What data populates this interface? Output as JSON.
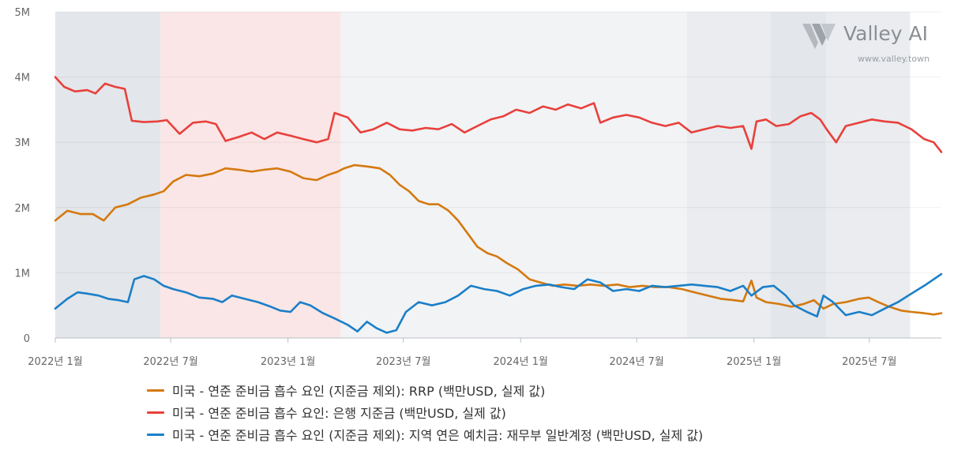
{
  "chart_data": {
    "type": "line",
    "title": "",
    "xlabel": "",
    "ylabel": "",
    "ylim": [
      0,
      5000000
    ],
    "xlim": [
      "2022-01-01",
      "2025-10-22"
    ],
    "y_ticks": [
      {
        "value": 0,
        "label": "0"
      },
      {
        "value": 1000000,
        "label": "1M"
      },
      {
        "value": 2000000,
        "label": "2M"
      },
      {
        "value": 3000000,
        "label": "3M"
      },
      {
        "value": 4000000,
        "label": "4M"
      },
      {
        "value": 5000000,
        "label": "5M"
      }
    ],
    "x_ticks": [
      {
        "date": "2022-01-01",
        "label": "2022년 1월"
      },
      {
        "date": "2022-07-01",
        "label": "2022년 7월"
      },
      {
        "date": "2023-01-01",
        "label": "2023년 1월"
      },
      {
        "date": "2023-07-01",
        "label": "2023년 7월"
      },
      {
        "date": "2024-01-01",
        "label": "2024년 1월"
      },
      {
        "date": "2024-07-01",
        "label": "2024년 7월"
      },
      {
        "date": "2025-01-01",
        "label": "2025년 1월"
      },
      {
        "date": "2025-07-01",
        "label": "2025년 7월"
      }
    ],
    "shaded_periods": [
      {
        "start": "2022-01-01",
        "end": "2022-06-15",
        "color": "#e3e6ea"
      },
      {
        "start": "2022-06-15",
        "end": "2023-03-25",
        "color": "#fae6e6"
      },
      {
        "start": "2023-03-25",
        "end": "2024-09-18",
        "color": "#f2f3f5"
      },
      {
        "start": "2024-09-18",
        "end": "2025-01-27",
        "color": "#eaecef"
      },
      {
        "start": "2025-01-27",
        "end": "2025-04-24",
        "color": "#e3e6ea"
      },
      {
        "start": "2025-04-24",
        "end": "2025-09-03",
        "color": "#eaecef"
      }
    ],
    "series": [
      {
        "name": "미국 - 연준 준비금 흡수 요인 (지준금 제외): RRP (백만USD, 실제 값)",
        "color": "#d4790f",
        "points": [
          [
            "2022-01-01",
            1800000
          ],
          [
            "2022-01-20",
            1950000
          ],
          [
            "2022-02-10",
            1900000
          ],
          [
            "2022-03-01",
            1900000
          ],
          [
            "2022-03-18",
            1800000
          ],
          [
            "2022-04-05",
            2000000
          ],
          [
            "2022-04-25",
            2050000
          ],
          [
            "2022-05-15",
            2150000
          ],
          [
            "2022-06-05",
            2200000
          ],
          [
            "2022-06-20",
            2250000
          ],
          [
            "2022-07-05",
            2400000
          ],
          [
            "2022-07-25",
            2500000
          ],
          [
            "2022-08-15",
            2480000
          ],
          [
            "2022-09-05",
            2520000
          ],
          [
            "2022-09-25",
            2600000
          ],
          [
            "2022-10-15",
            2580000
          ],
          [
            "2022-11-05",
            2550000
          ],
          [
            "2022-11-25",
            2580000
          ],
          [
            "2022-12-15",
            2600000
          ],
          [
            "2023-01-05",
            2550000
          ],
          [
            "2023-01-25",
            2450000
          ],
          [
            "2023-02-15",
            2420000
          ],
          [
            "2023-03-05",
            2500000
          ],
          [
            "2023-03-20",
            2550000
          ],
          [
            "2023-03-30",
            2600000
          ],
          [
            "2023-04-15",
            2650000
          ],
          [
            "2023-05-05",
            2630000
          ],
          [
            "2023-05-25",
            2600000
          ],
          [
            "2023-06-10",
            2500000
          ],
          [
            "2023-06-25",
            2350000
          ],
          [
            "2023-07-10",
            2250000
          ],
          [
            "2023-07-25",
            2100000
          ],
          [
            "2023-08-10",
            2050000
          ],
          [
            "2023-08-25",
            2050000
          ],
          [
            "2023-09-10",
            1950000
          ],
          [
            "2023-09-25",
            1800000
          ],
          [
            "2023-10-10",
            1600000
          ],
          [
            "2023-10-25",
            1400000
          ],
          [
            "2023-11-10",
            1300000
          ],
          [
            "2023-11-25",
            1250000
          ],
          [
            "2023-12-10",
            1150000
          ],
          [
            "2023-12-28",
            1050000
          ],
          [
            "2024-01-15",
            900000
          ],
          [
            "2024-02-01",
            850000
          ],
          [
            "2024-02-20",
            800000
          ],
          [
            "2024-03-10",
            820000
          ],
          [
            "2024-03-30",
            800000
          ],
          [
            "2024-04-20",
            820000
          ],
          [
            "2024-05-10",
            800000
          ],
          [
            "2024-06-01",
            820000
          ],
          [
            "2024-06-20",
            780000
          ],
          [
            "2024-07-10",
            800000
          ],
          [
            "2024-07-30",
            780000
          ],
          [
            "2024-08-20",
            780000
          ],
          [
            "2024-09-10",
            750000
          ],
          [
            "2024-09-30",
            700000
          ],
          [
            "2024-10-20",
            650000
          ],
          [
            "2024-11-10",
            600000
          ],
          [
            "2024-11-30",
            580000
          ],
          [
            "2024-12-15",
            560000
          ],
          [
            "2024-12-28",
            880000
          ],
          [
            "2025-01-05",
            620000
          ],
          [
            "2025-01-20",
            550000
          ],
          [
            "2025-02-10",
            520000
          ],
          [
            "2025-03-01",
            480000
          ],
          [
            "2025-03-20",
            520000
          ],
          [
            "2025-04-05",
            580000
          ],
          [
            "2025-04-20",
            450000
          ],
          [
            "2025-05-05",
            520000
          ],
          [
            "2025-05-25",
            550000
          ],
          [
            "2025-06-15",
            600000
          ],
          [
            "2025-06-30",
            620000
          ],
          [
            "2025-07-15",
            550000
          ],
          [
            "2025-08-01",
            480000
          ],
          [
            "2025-08-20",
            420000
          ],
          [
            "2025-09-05",
            400000
          ],
          [
            "2025-09-25",
            380000
          ],
          [
            "2025-10-10",
            360000
          ],
          [
            "2025-10-22",
            380000
          ]
        ]
      },
      {
        "name": "미국 - 연준 준비금 흡수 요인: 은행 지준금 (백만USD, 실제 값)",
        "color": "#e8403c",
        "points": [
          [
            "2022-01-01",
            4000000
          ],
          [
            "2022-01-15",
            3850000
          ],
          [
            "2022-02-01",
            3780000
          ],
          [
            "2022-02-20",
            3800000
          ],
          [
            "2022-03-05",
            3750000
          ],
          [
            "2022-03-20",
            3900000
          ],
          [
            "2022-04-05",
            3850000
          ],
          [
            "2022-04-20",
            3820000
          ],
          [
            "2022-05-01",
            3330000
          ],
          [
            "2022-05-20",
            3310000
          ],
          [
            "2022-06-10",
            3320000
          ],
          [
            "2022-06-25",
            3340000
          ],
          [
            "2022-07-15",
            3130000
          ],
          [
            "2022-08-05",
            3300000
          ],
          [
            "2022-08-25",
            3320000
          ],
          [
            "2022-09-10",
            3280000
          ],
          [
            "2022-09-25",
            3020000
          ],
          [
            "2022-10-15",
            3080000
          ],
          [
            "2022-11-05",
            3150000
          ],
          [
            "2022-11-25",
            3050000
          ],
          [
            "2022-12-15",
            3150000
          ],
          [
            "2023-01-05",
            3100000
          ],
          [
            "2023-01-25",
            3050000
          ],
          [
            "2023-02-15",
            3000000
          ],
          [
            "2023-03-05",
            3050000
          ],
          [
            "2023-03-15",
            3450000
          ],
          [
            "2023-04-05",
            3380000
          ],
          [
            "2023-04-25",
            3150000
          ],
          [
            "2023-05-15",
            3200000
          ],
          [
            "2023-06-05",
            3300000
          ],
          [
            "2023-06-25",
            3200000
          ],
          [
            "2023-07-15",
            3180000
          ],
          [
            "2023-08-05",
            3220000
          ],
          [
            "2023-08-25",
            3200000
          ],
          [
            "2023-09-15",
            3280000
          ],
          [
            "2023-10-05",
            3150000
          ],
          [
            "2023-10-25",
            3250000
          ],
          [
            "2023-11-15",
            3350000
          ],
          [
            "2023-12-05",
            3400000
          ],
          [
            "2023-12-25",
            3500000
          ],
          [
            "2024-01-15",
            3450000
          ],
          [
            "2024-02-05",
            3550000
          ],
          [
            "2024-02-25",
            3500000
          ],
          [
            "2024-03-15",
            3580000
          ],
          [
            "2024-04-05",
            3520000
          ],
          [
            "2024-04-25",
            3600000
          ],
          [
            "2024-05-05",
            3300000
          ],
          [
            "2024-05-25",
            3380000
          ],
          [
            "2024-06-15",
            3420000
          ],
          [
            "2024-07-05",
            3380000
          ],
          [
            "2024-07-25",
            3300000
          ],
          [
            "2024-08-15",
            3250000
          ],
          [
            "2024-09-05",
            3300000
          ],
          [
            "2024-09-25",
            3150000
          ],
          [
            "2024-10-15",
            3200000
          ],
          [
            "2024-11-05",
            3250000
          ],
          [
            "2024-11-25",
            3220000
          ],
          [
            "2024-12-15",
            3250000
          ],
          [
            "2024-12-28",
            2900000
          ],
          [
            "2025-01-05",
            3320000
          ],
          [
            "2025-01-20",
            3350000
          ],
          [
            "2025-02-05",
            3250000
          ],
          [
            "2025-02-25",
            3280000
          ],
          [
            "2025-03-15",
            3400000
          ],
          [
            "2025-04-01",
            3450000
          ],
          [
            "2025-04-15",
            3350000
          ],
          [
            "2025-04-25",
            3200000
          ],
          [
            "2025-05-10",
            3000000
          ],
          [
            "2025-05-25",
            3250000
          ],
          [
            "2025-06-15",
            3300000
          ],
          [
            "2025-07-05",
            3350000
          ],
          [
            "2025-07-25",
            3320000
          ],
          [
            "2025-08-15",
            3300000
          ],
          [
            "2025-09-05",
            3200000
          ],
          [
            "2025-09-25",
            3050000
          ],
          [
            "2025-10-10",
            3000000
          ],
          [
            "2025-10-22",
            2850000
          ]
        ]
      },
      {
        "name": "미국 - 연준 준비금 흡수 요인 (지준금 제외): 지역 연은 예치금: 재무부 일반계정 (백만USD, 실제 값)",
        "color": "#1a7fc8",
        "points": [
          [
            "2022-01-01",
            450000
          ],
          [
            "2022-01-20",
            600000
          ],
          [
            "2022-02-05",
            700000
          ],
          [
            "2022-02-20",
            680000
          ],
          [
            "2022-03-10",
            650000
          ],
          [
            "2022-03-25",
            600000
          ],
          [
            "2022-04-10",
            580000
          ],
          [
            "2022-04-25",
            550000
          ],
          [
            "2022-05-05",
            900000
          ],
          [
            "2022-05-20",
            950000
          ],
          [
            "2022-06-05",
            900000
          ],
          [
            "2022-06-20",
            800000
          ],
          [
            "2022-07-05",
            750000
          ],
          [
            "2022-07-25",
            700000
          ],
          [
            "2022-08-15",
            620000
          ],
          [
            "2022-09-05",
            600000
          ],
          [
            "2022-09-20",
            550000
          ],
          [
            "2022-10-05",
            650000
          ],
          [
            "2022-10-25",
            600000
          ],
          [
            "2022-11-15",
            550000
          ],
          [
            "2022-12-05",
            480000
          ],
          [
            "2022-12-20",
            420000
          ],
          [
            "2023-01-05",
            400000
          ],
          [
            "2023-01-20",
            550000
          ],
          [
            "2023-02-05",
            500000
          ],
          [
            "2023-02-25",
            380000
          ],
          [
            "2023-03-15",
            300000
          ],
          [
            "2023-04-05",
            200000
          ],
          [
            "2023-04-20",
            100000
          ],
          [
            "2023-05-05",
            250000
          ],
          [
            "2023-05-20",
            150000
          ],
          [
            "2023-06-05",
            80000
          ],
          [
            "2023-06-20",
            120000
          ],
          [
            "2023-07-05",
            400000
          ],
          [
            "2023-07-25",
            550000
          ],
          [
            "2023-08-15",
            500000
          ],
          [
            "2023-09-05",
            550000
          ],
          [
            "2023-09-25",
            650000
          ],
          [
            "2023-10-15",
            800000
          ],
          [
            "2023-11-05",
            750000
          ],
          [
            "2023-11-25",
            720000
          ],
          [
            "2023-12-15",
            650000
          ],
          [
            "2024-01-05",
            750000
          ],
          [
            "2024-01-25",
            800000
          ],
          [
            "2024-02-15",
            820000
          ],
          [
            "2024-03-05",
            780000
          ],
          [
            "2024-03-25",
            750000
          ],
          [
            "2024-04-15",
            900000
          ],
          [
            "2024-05-05",
            850000
          ],
          [
            "2024-05-25",
            720000
          ],
          [
            "2024-06-15",
            750000
          ],
          [
            "2024-07-05",
            720000
          ],
          [
            "2024-07-25",
            800000
          ],
          [
            "2024-08-15",
            780000
          ],
          [
            "2024-09-05",
            800000
          ],
          [
            "2024-09-25",
            820000
          ],
          [
            "2024-10-15",
            800000
          ],
          [
            "2024-11-05",
            780000
          ],
          [
            "2024-11-25",
            720000
          ],
          [
            "2024-12-15",
            800000
          ],
          [
            "2024-12-28",
            650000
          ],
          [
            "2025-01-15",
            780000
          ],
          [
            "2025-02-01",
            800000
          ],
          [
            "2025-02-20",
            650000
          ],
          [
            "2025-03-05",
            500000
          ],
          [
            "2025-03-25",
            400000
          ],
          [
            "2025-04-10",
            330000
          ],
          [
            "2025-04-20",
            650000
          ],
          [
            "2025-05-05",
            550000
          ],
          [
            "2025-05-25",
            350000
          ],
          [
            "2025-06-15",
            400000
          ],
          [
            "2025-07-05",
            350000
          ],
          [
            "2025-07-25",
            450000
          ],
          [
            "2025-08-15",
            550000
          ],
          [
            "2025-09-05",
            680000
          ],
          [
            "2025-09-25",
            800000
          ],
          [
            "2025-10-10",
            900000
          ],
          [
            "2025-10-22",
            980000
          ]
        ]
      }
    ]
  },
  "brand": {
    "name": "Valley AI",
    "url": "www.valley.town"
  }
}
